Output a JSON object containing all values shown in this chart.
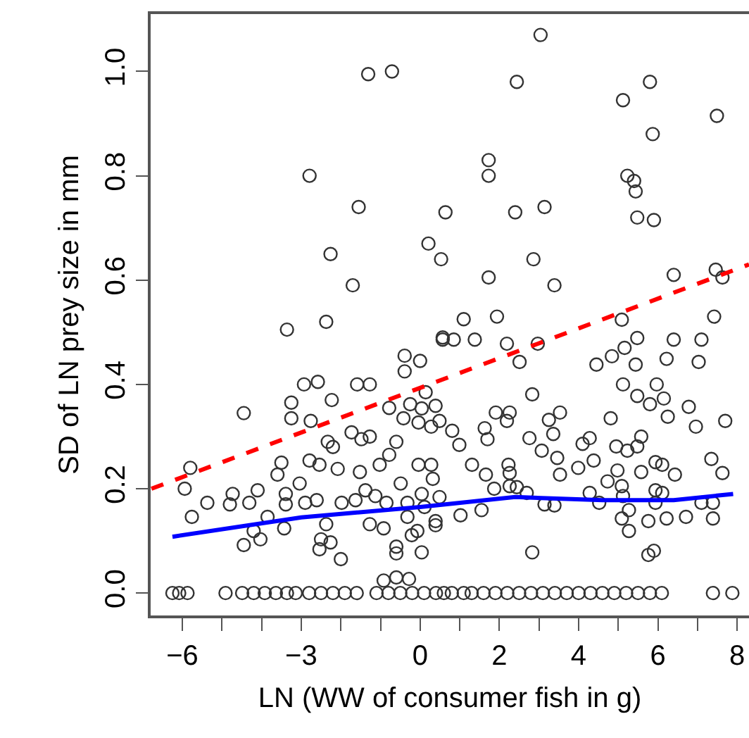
{
  "chart_data": {
    "type": "scatter",
    "xlabel": "LN (WW of consumer fish in g)",
    "ylabel": "SD of LN prey size in mm",
    "grid": false,
    "xlim": [
      -6.8,
      8.3
    ],
    "xticks": [
      {
        "value": -6,
        "label": "−6"
      },
      {
        "value": -5,
        "label": null
      },
      {
        "value": -4,
        "label": null
      },
      {
        "value": -3,
        "label": "−3"
      },
      {
        "value": -2,
        "label": null
      },
      {
        "value": -1,
        "label": null
      },
      0,
      {
        "value": 1,
        "label": null
      },
      2,
      {
        "value": 3,
        "label": null
      },
      4,
      {
        "value": 5,
        "label": null
      },
      6,
      {
        "value": 7,
        "label": null
      },
      8
    ],
    "ylim": [
      -0.043,
      1.11
    ],
    "yticks": [
      {
        "value": 0,
        "label": "0.0"
      },
      {
        "value": 0.2,
        "label": "0.2"
      },
      {
        "value": 0.4,
        "label": "0.4"
      },
      {
        "value": 0.6,
        "label": "0.6"
      },
      {
        "value": 0.8,
        "label": "0.8"
      },
      {
        "value": 1,
        "label": "1.0"
      }
    ],
    "series": [
      {
        "marker": "circle",
        "color": "#333333",
        "x": [
          -1.31,
          -0.71,
          -2.79,
          -1.55,
          0.64,
          -2.26,
          0.21,
          0.53,
          -1.7,
          -2.37,
          3.04,
          2.44,
          5.8,
          5.12,
          7.49,
          5.87,
          1.73,
          1.73,
          5.23,
          5.4,
          5.44,
          2.4,
          3.14,
          5.48,
          5.9,
          2.86,
          1.73,
          3.39,
          6.4,
          7.46,
          7.63,
          1.1,
          1.94,
          7.42,
          -3.36,
          -4.45,
          -3.25,
          -3.25,
          -2.93,
          -2.58,
          -2.23,
          -2.76,
          -1.59,
          -1.27,
          -0.78,
          -0.39,
          0,
          -0.39,
          0.57,
          0.14,
          -5.8,
          -5.94,
          -5.76,
          -5.37,
          -4.8,
          -4.73,
          -4.31,
          -4.45,
          -4.1,
          -4.2,
          -4.03,
          -3.85,
          -3.5,
          -3.6,
          -3.39,
          -3.39,
          -3.43,
          -3.04,
          -2.9,
          -2.79,
          -2.54,
          -2.61,
          -2.5,
          -2.54,
          -2.26,
          -2.37,
          -2.08,
          -2.33,
          -2.2,
          -2.0,
          -1.98,
          -1.73,
          -1.48,
          -1.52,
          -1.27,
          -1.38,
          -1.63,
          -1.27,
          -1.13,
          -0.92,
          -1.02,
          -0.78,
          -0.85,
          -0.6,
          -0.6,
          -0.6,
          -0.42,
          -0.49,
          -0.32,
          -0.32,
          -0.21,
          -0.25,
          -0.04,
          0.04,
          -0.04,
          0.04,
          0.11,
          -0.07,
          0.04,
          0.28,
          0.28,
          0.32,
          0.39,
          0.49,
          -0.92,
          -0.6,
          -0.28,
          0.57,
          0.85,
          1.38,
          2.19,
          2.97,
          2.51,
          5.09,
          5.48,
          6.4,
          7.1,
          4.84,
          5.16,
          4.45,
          5.44,
          6.22,
          7.03,
          2.83,
          5.12,
          5.48,
          5.97,
          5.8,
          6.15,
          0.39,
          0.49,
          1.91,
          2.26,
          2.19,
          3.25,
          3.53,
          4.81,
          6.25,
          6.78,
          6.96,
          7.7,
          0.81,
          0.99,
          1.63,
          1.7,
          2.76,
          3.36,
          3.07,
          3.46,
          3.53,
          4.1,
          4.28,
          4.38,
          3.99,
          4.95,
          5.23,
          5.48,
          5.58,
          5.94,
          6.11,
          5.58,
          6.43,
          4.98,
          1.31,
          1.66,
          2.23,
          2.26,
          7.35,
          7.63,
          1.87,
          2.26,
          2.44,
          2.69,
          1.55,
          1.02,
          3.14,
          3.39,
          4.28,
          4.52,
          4.73,
          5.09,
          5.12,
          5.09,
          5.27,
          5.27,
          5.76,
          5.94,
          5.94,
          6.11,
          6.22,
          6.71,
          7.1,
          7.39,
          7.39,
          2.83,
          5.76,
          5.9,
          0.39,
          -6.25,
          -6.08,
          -5.87,
          -4.91,
          -4.49,
          -4.2,
          -3.92,
          -3.64,
          -3.36,
          -3.14,
          -2.8,
          -2.5,
          -2.2,
          -1.9,
          -1.6,
          -1.1,
          -0.8,
          -0.5,
          -0.2,
          0.1,
          0.4,
          0.6,
          0.8,
          1.1,
          1.3,
          1.6,
          1.9,
          2.2,
          2.5,
          2.8,
          3.1,
          3.4,
          3.7,
          4.0,
          4.3,
          4.6,
          4.9,
          5.2,
          5.5,
          5.8,
          6.1,
          7.39,
          7.88
        ],
        "values": [
          0.995,
          1.0,
          0.8,
          0.74,
          0.73,
          0.65,
          0.67,
          0.64,
          0.59,
          0.52,
          1.07,
          0.98,
          0.98,
          0.945,
          0.915,
          0.88,
          0.83,
          0.8,
          0.8,
          0.79,
          0.77,
          0.73,
          0.74,
          0.72,
          0.715,
          0.64,
          0.605,
          0.59,
          0.61,
          0.62,
          0.605,
          0.525,
          0.53,
          0.53,
          0.505,
          0.345,
          0.365,
          0.335,
          0.4,
          0.405,
          0.37,
          0.33,
          0.4,
          0.4,
          0.355,
          0.455,
          0.445,
          0.425,
          0.49,
          0.385,
          0.24,
          0.2,
          0.146,
          0.173,
          0.17,
          0.19,
          0.173,
          0.092,
          0.197,
          0.119,
          0.103,
          0.146,
          0.25,
          0.227,
          0.19,
          0.17,
          0.124,
          0.21,
          0.173,
          0.254,
          0.246,
          0.178,
          0.103,
          0.084,
          0.097,
          0.132,
          0.238,
          0.29,
          0.28,
          0.065,
          0.173,
          0.308,
          0.295,
          0.232,
          0.3,
          0.197,
          0.178,
          0.132,
          0.186,
          0.124,
          0.246,
          0.265,
          0.173,
          0.29,
          0.089,
          0.076,
          0.335,
          0.21,
          0.173,
          0.146,
          0.111,
          0.362,
          0.327,
          0.354,
          0.246,
          0.19,
          0.165,
          0.119,
          0.078,
          0.319,
          0.246,
          0.219,
          0.138,
          0.184,
          0.024,
          0.03,
          0.027,
          0.486,
          0.486,
          0.486,
          0.478,
          0.478,
          0.443,
          0.524,
          0.489,
          0.486,
          0.486,
          0.454,
          0.47,
          0.438,
          0.438,
          0.449,
          0.443,
          0.381,
          0.4,
          0.378,
          0.4,
          0.362,
          0.373,
          0.359,
          0.33,
          0.346,
          0.346,
          0.33,
          0.332,
          0.346,
          0.335,
          0.338,
          0.357,
          0.319,
          0.33,
          0.311,
          0.284,
          0.316,
          0.295,
          0.297,
          0.305,
          0.273,
          0.259,
          0.227,
          0.286,
          0.297,
          0.254,
          0.24,
          0.281,
          0.273,
          0.281,
          0.3,
          0.251,
          0.246,
          0.232,
          0.227,
          0.235,
          0.246,
          0.227,
          0.246,
          0.23,
          0.257,
          0.23,
          0.2,
          0.205,
          0.203,
          0.192,
          0.159,
          0.149,
          0.17,
          0.168,
          0.192,
          0.173,
          0.214,
          0.205,
          0.186,
          0.143,
          0.119,
          0.159,
          0.138,
          0.173,
          0.197,
          0.192,
          0.143,
          0.146,
          0.173,
          0.173,
          0.143,
          0.078,
          0.073,
          0.081,
          0.13,
          0,
          0,
          0,
          0,
          0,
          0,
          0,
          0,
          0,
          0,
          0,
          0,
          0,
          0,
          0,
          0,
          0,
          0,
          0,
          0,
          0,
          0,
          0,
          0,
          0,
          0,
          0,
          0,
          0,
          0,
          0,
          0,
          0,
          0,
          0,
          0,
          0,
          0,
          0,
          0,
          0,
          0,
          0
        ]
      },
      {
        "type": "line",
        "marker": "none",
        "color": "#0000ff",
        "line_style": "solid",
        "x": [
          -6.25,
          -3,
          0,
          2.4,
          4.6,
          6.4,
          7.9
        ],
        "values": [
          0.108,
          0.145,
          0.165,
          0.184,
          0.178,
          0.178,
          0.19
        ]
      },
      {
        "type": "line",
        "marker": "none",
        "color": "#ff0000",
        "line_style": "dashed",
        "x": [
          -6.78,
          8.3
        ],
        "values": [
          0.2,
          0.63
        ]
      }
    ]
  }
}
